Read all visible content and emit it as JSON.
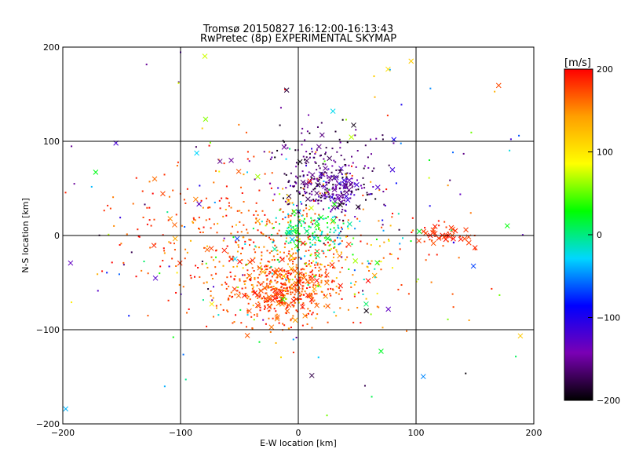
{
  "chart_data": {
    "type": "scatter",
    "title": "Tromsø 20150827 16:12:00-16:13:43",
    "subtitle": "RwPretec (8p) EXPERIMENTAL SKYMAP",
    "xlabel": "E-W location [km]",
    "ylabel": "N-S location [km]",
    "xlim": [
      -200,
      200
    ],
    "ylim": [
      -200,
      200
    ],
    "xticks": [
      "−200",
      "−100",
      "0",
      "100",
      "200"
    ],
    "yticks": [
      "−200",
      "−100",
      "0",
      "100",
      "200"
    ],
    "grid": true,
    "colorbar": {
      "unit": "[m/s]",
      "range": [
        -200,
        200
      ],
      "ticks": [
        "200",
        "100",
        "0",
        "−100",
        "−200"
      ],
      "colors": [
        "#000000",
        "#7a00b4",
        "#0000ff",
        "#00d7ff",
        "#00ff00",
        "#ffff00",
        "#ff9f00",
        "#ff0000"
      ]
    },
    "clusters": [
      {
        "center": [
          -15,
          -58
        ],
        "spread": [
          24,
          16
        ],
        "count": 430,
        "vmin": 150,
        "vmax": 200,
        "cross_fraction": 0.12
      },
      {
        "center": [
          -10,
          -25
        ],
        "spread": [
          45,
          30
        ],
        "count": 300,
        "vmin": 120,
        "vmax": 200,
        "cross_fraction": 0.05
      },
      {
        "center": [
          -30,
          5
        ],
        "spread": [
          70,
          35
        ],
        "count": 160,
        "vmin": 150,
        "vmax": 200,
        "cross_fraction": 0.06
      },
      {
        "center": [
          -80,
          10
        ],
        "spread": [
          40,
          40
        ],
        "count": 70,
        "vmin": 160,
        "vmax": 200,
        "cross_fraction": 0.05
      },
      {
        "center": [
          125,
          0
        ],
        "spread": [
          12,
          6
        ],
        "count": 45,
        "vmin": 170,
        "vmax": 200,
        "cross_fraction": 0.55
      },
      {
        "center": [
          25,
          48
        ],
        "spread": [
          18,
          14
        ],
        "count": 230,
        "vmin": -200,
        "vmax": -110,
        "cross_fraction": 0.22
      },
      {
        "center": [
          20,
          82
        ],
        "spread": [
          22,
          18
        ],
        "count": 110,
        "vmin": -200,
        "vmax": -140,
        "cross_fraction": 0.08
      },
      {
        "center": [
          10,
          5
        ],
        "spread": [
          20,
          12
        ],
        "count": 120,
        "vmin": -30,
        "vmax": 40,
        "cross_fraction": 0.1
      },
      {
        "center": [
          20,
          -20
        ],
        "spread": [
          35,
          25
        ],
        "count": 80,
        "vmin": -60,
        "vmax": 110,
        "cross_fraction": 0.04
      },
      {
        "center": [
          0,
          10
        ],
        "spread": [
          110,
          75
        ],
        "count": 150,
        "vmin": -200,
        "vmax": 200,
        "cross_fraction": 0.2
      },
      {
        "center": [
          0,
          0
        ],
        "spread": [
          130,
          110
        ],
        "count": 60,
        "vmin": -200,
        "vmax": 200,
        "cross_fraction": 0.3
      }
    ]
  }
}
